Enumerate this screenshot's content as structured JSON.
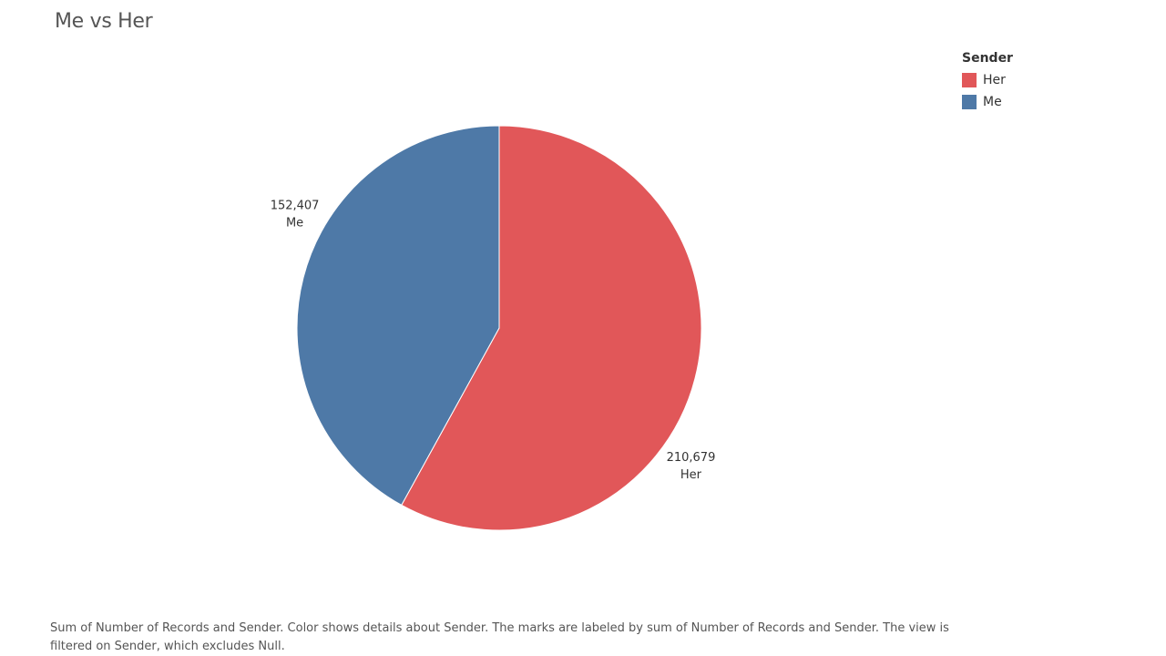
{
  "title": "Me vs Her",
  "legend": {
    "title": "Sender",
    "items": [
      {
        "label": "Her",
        "color": "#E15759"
      },
      {
        "label": "Me",
        "color": "#4E79A7"
      }
    ]
  },
  "chart_data": {
    "type": "pie",
    "title": "Me vs Her",
    "slices": [
      {
        "label": "Her",
        "value": 210679,
        "value_text": "210,679",
        "color": "#E15759"
      },
      {
        "label": "Me",
        "value": 152407,
        "value_text": "152,407",
        "color": "#4E79A7"
      }
    ],
    "legend_title": "Sender",
    "legend_position": "top-right"
  },
  "caption": "Sum of Number of Records and Sender.  Color shows details about Sender.  The marks are labeled by sum of Number of Records and Sender. The view is filtered on Sender, which excludes Null."
}
